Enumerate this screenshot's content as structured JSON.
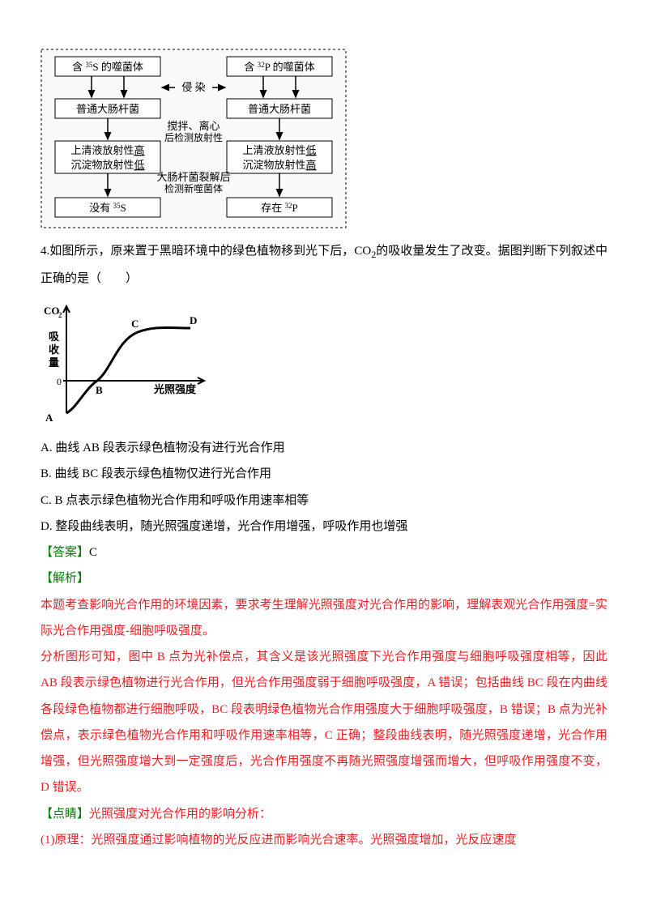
{
  "figure1": {
    "border_color": "#000000",
    "box_fill": "#ffffff",
    "box_stroke": "#000000",
    "left_col": {
      "row1": "含<sup>35</sup>S 的噬菌体",
      "row2": "普通大肠杆菌",
      "row3_l1": "上清液放射性高",
      "row3_l2": "沉淀物放射性低",
      "row4": "没有<sup>35</sup>S"
    },
    "right_col": {
      "row1": "含<sup>32</sup>P 的噬菌体",
      "row2": "普通大肠杆菌",
      "row3_l1": "上清液放射性低",
      "row3_l2": "沉淀物放射性高",
      "row4": "存在<sup>32</sup>P"
    },
    "center_labels": {
      "a": "侵 染",
      "b_l1": "搅拌、离心",
      "b_l2": "后检测放射性",
      "c_l1": "大肠杆菌裂解后",
      "c_l2": "检测新噬菌体"
    }
  },
  "q4_intro": "4.如图所示，原来置于黑暗环境中的绿色植物移到光下后，CO<sub>2</sub>的吸收量发生了改变。据图判断下列叙述中正确的是（　　）",
  "figure2": {
    "y_label_top": "CO<sub>2</sub>",
    "y_label_l1": "吸",
    "y_label_l2": "收",
    "y_label_l3": "量",
    "y_tick0": "0",
    "x_label": "光照强度",
    "point_A": "A",
    "point_B": "B",
    "point_C": "C",
    "point_D": "D",
    "axis_color": "#000000",
    "curve_color": "#000000"
  },
  "options": {
    "A": "A.  曲线 AB 段表示绿色植物没有进行光合作用",
    "B": "B.  曲线 BC 段表示绿色植物仅进行光合作用",
    "C": "C.  B 点表示绿色植物光合作用和呼吸作用速率相等",
    "D": "D.  整段曲线表明，随光照强度递增，光合作用增强，呼吸作用也增强"
  },
  "answer_label": "【答案】",
  "answer": "C",
  "explain_label": "【解析】",
  "explain_p1": "本题考查影响光合作用的环境因素，要求考生理解光照强度对光合作用的影响，理解表观光合作用强度=实际光合作用强度-细胞呼吸强度。",
  "explain_p2": "分析图形可知，图中 B 点为光补偿点，其含义是该光照强度下光合作用强度与细胞呼吸强度相等，因此 AB 段表示绿色植物进行光合作用，但光合作用强度弱于细胞呼吸强度，A 错误；包括曲线 BC 段在内曲线各段绿色植物都进行细胞呼吸，BC 段表明绿色植物光合作用强度大于细胞呼吸强度，B 错误；B 点为光补偿点，表示绿色植物光合作用和呼吸作用速率相等，C 正确；整段曲线表明，随光照强度递增，光合作用增强，但光照强度增大到一定强度后，光合作用强度不再随光照强度增强而增大，但呼吸作用强度不变，D 错误。",
  "tip_label": "【点睛】",
  "tip_title": "光照强度对光合作用的影响分析：",
  "tip_p1": "(1)原理：光照强度通过影响植物的光反应进而影响光合速率。光照强度增加，光反应速度"
}
